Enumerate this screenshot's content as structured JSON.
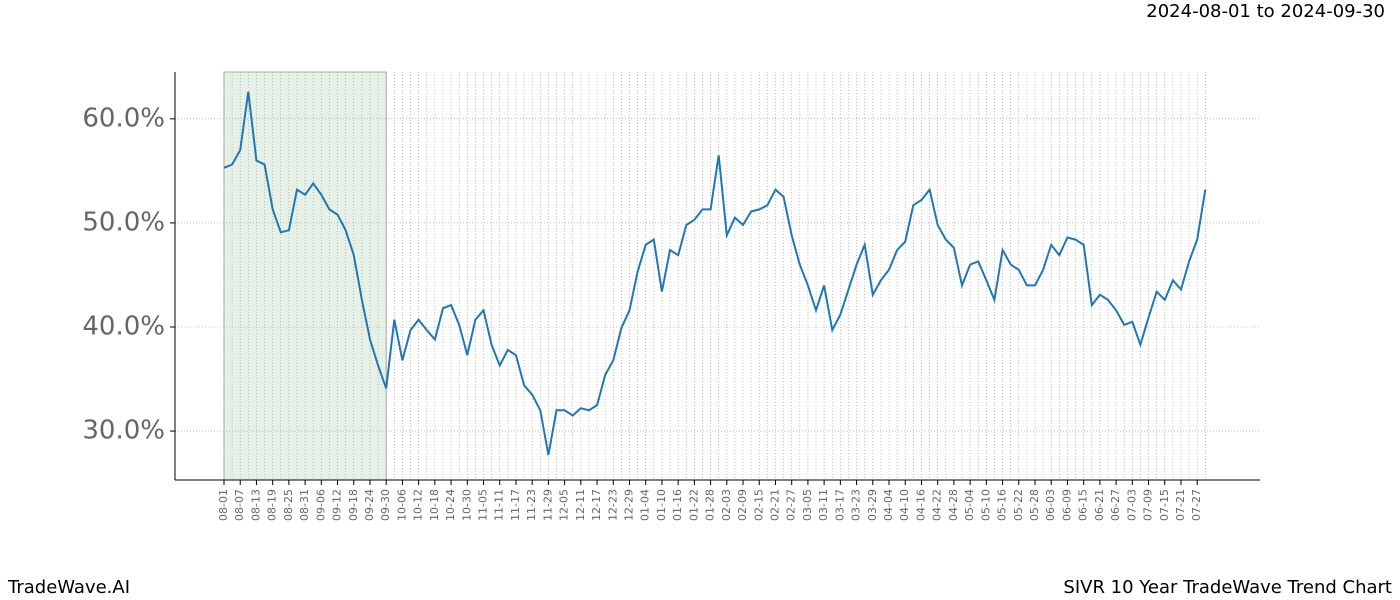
{
  "header": {
    "date_range": "2024-08-01 to 2024-09-30"
  },
  "footer": {
    "brand": "TradeWave.AI",
    "chart_title": "SIVR 10 Year TradeWave Trend Chart"
  },
  "chart_data": {
    "type": "line",
    "categories": [
      "08-01",
      null,
      "08-07",
      null,
      "08-13",
      null,
      "08-19",
      null,
      "08-25",
      null,
      "08-31",
      null,
      "09-06",
      null,
      "09-12",
      null,
      "09-18",
      null,
      "09-24",
      null,
      "09-30",
      null,
      "10-06",
      null,
      "10-12",
      null,
      "10-18",
      null,
      "10-24",
      null,
      "10-30",
      null,
      "11-05",
      null,
      "11-11",
      null,
      "11-17",
      null,
      "11-23",
      null,
      "11-29",
      null,
      "12-05",
      null,
      "12-11",
      null,
      "12-17",
      null,
      "12-23",
      null,
      "12-29",
      null,
      "01-04",
      null,
      "01-10",
      null,
      "01-16",
      null,
      "01-22",
      null,
      "01-28",
      null,
      "02-03",
      null,
      "02-09",
      null,
      "02-15",
      null,
      "02-21",
      null,
      "02-27",
      null,
      "03-05",
      null,
      "03-11",
      null,
      "03-17",
      null,
      "03-23",
      null,
      "03-29",
      null,
      "04-04",
      null,
      "04-10",
      null,
      "04-16",
      null,
      "04-22",
      null,
      "04-28",
      null,
      "05-04",
      null,
      "05-10",
      null,
      "05-16",
      null,
      "05-22",
      null,
      "05-28",
      null,
      "06-03",
      null,
      "06-09",
      null,
      "06-15",
      null,
      "06-21",
      null,
      "06-27",
      null,
      "07-03",
      null,
      "07-09",
      null,
      "07-15",
      null,
      "07-21",
      null,
      "07-27",
      null
    ],
    "series": [
      {
        "name": "SIVR",
        "color": "#1f77b4",
        "values": [
          55.3,
          55.6,
          57.0,
          62.6,
          56.0,
          55.6,
          51.3,
          49.1,
          49.3,
          53.2,
          52.7,
          53.8,
          52.7,
          51.3,
          50.8,
          49.3,
          46.9,
          42.6,
          38.8,
          36.3,
          34.1,
          40.7,
          36.8,
          39.7,
          40.7,
          39.7,
          38.8,
          41.8,
          42.1,
          40.2,
          37.3,
          40.7,
          41.6,
          38.3,
          36.3,
          37.8,
          37.3,
          34.4,
          33.5,
          32.0,
          27.7,
          32.0,
          32.0,
          31.5,
          32.2,
          32.0,
          32.5,
          35.4,
          36.8,
          39.9,
          41.6,
          45.3,
          47.9,
          48.4,
          43.4,
          47.4,
          46.9,
          49.8,
          50.3,
          51.3,
          51.3,
          56.5,
          48.8,
          50.5,
          49.8,
          51.1,
          51.3,
          51.7,
          53.2,
          52.5,
          48.8,
          46.0,
          44.0,
          41.6,
          44.0,
          39.7,
          41.2,
          43.6,
          46.0,
          47.9,
          43.1,
          44.5,
          45.5,
          47.4,
          48.2,
          51.7,
          52.2,
          53.2,
          49.8,
          48.4,
          47.6,
          44.0,
          46.0,
          46.3,
          44.5,
          42.6,
          47.4,
          46.0,
          45.5,
          44.0,
          44.0,
          45.5,
          47.9,
          46.9,
          48.6,
          48.4,
          47.9,
          42.1,
          43.1,
          42.6,
          41.6,
          40.2,
          40.5,
          38.3,
          40.9,
          43.4,
          42.6,
          44.5,
          43.6,
          46.3,
          48.4,
          53.2
        ]
      }
    ],
    "ylim": [
      25.3,
      64.5
    ],
    "yticks": [
      {
        "value": 30,
        "label": "30.0%"
      },
      {
        "value": 40,
        "label": "40.0%"
      },
      {
        "value": 50,
        "label": "50.0%"
      },
      {
        "value": 60,
        "label": "60.0%"
      }
    ],
    "grid": true,
    "shaded_range": [
      "08-01",
      "09-30"
    ],
    "shade_color": "#e6f0e6"
  }
}
